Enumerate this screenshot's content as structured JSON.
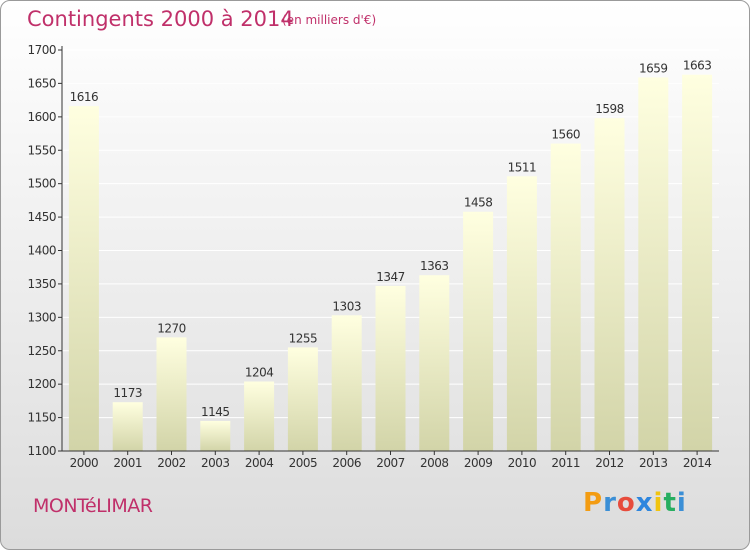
{
  "header": {
    "title": "Contingents 2000 à 2014",
    "subtitle": "(en milliers d'€)"
  },
  "footer": {
    "city": "MONTéLIMAR",
    "logo_letters": [
      "P",
      "r",
      "o",
      "x",
      "i",
      "t",
      "i"
    ],
    "logo_colors": [
      "#f39c12",
      "#3b8fd6",
      "#e74c3c",
      "#2e86de",
      "#f1c40f",
      "#27ae60",
      "#3b8fd6"
    ]
  },
  "colors": {
    "bar_top": "#ffffe0",
    "bar_bottom": "#d2d4a8",
    "axis": "#333333",
    "grid": "#ffffff",
    "text": "#333333",
    "accent": "#c0306a"
  },
  "chart_data": {
    "type": "bar",
    "title": "Contingents 2000 à 2014",
    "subtitle": "(en milliers d'€)",
    "categories": [
      "2000",
      "2001",
      "2002",
      "2003",
      "2004",
      "2005",
      "2006",
      "2007",
      "2008",
      "2009",
      "2010",
      "2011",
      "2012",
      "2013",
      "2014"
    ],
    "values": [
      1616,
      1173,
      1270,
      1145,
      1204,
      1255,
      1303,
      1347,
      1363,
      1458,
      1511,
      1560,
      1598,
      1659,
      1663
    ],
    "ylim": [
      1100,
      1700
    ],
    "yticks": [
      1100,
      1150,
      1200,
      1250,
      1300,
      1350,
      1400,
      1450,
      1500,
      1550,
      1600,
      1650,
      1700
    ],
    "grid": true,
    "legend": "none"
  }
}
